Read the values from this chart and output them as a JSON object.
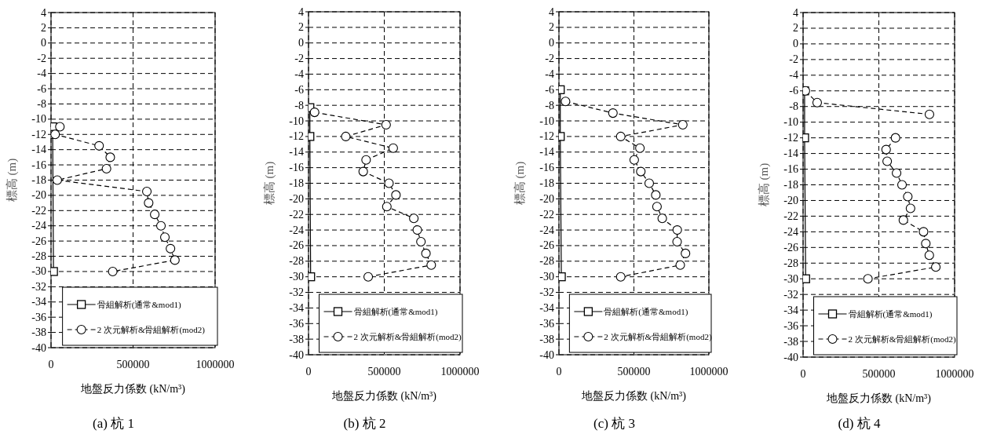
{
  "chart_data": [
    {
      "type": "line",
      "annotations": [
        "(a) 杭 1"
      ],
      "xlabel": "地盤反力係数 (kN/m³)",
      "ylabel": "標高 (m)",
      "xlim": [
        0,
        1000000
      ],
      "xticks": [
        0,
        500000,
        1000000
      ],
      "ylim": [
        -40,
        4
      ],
      "yticks": [
        4,
        2,
        0,
        -2,
        -4,
        -6,
        -8,
        -10,
        -12,
        -14,
        -16,
        -18,
        -20,
        -22,
        -24,
        -26,
        -28,
        -30,
        -32,
        -34,
        -36,
        -38,
        -40
      ],
      "grid": true,
      "legend": "bottom",
      "series": [
        {
          "name": "骨組解析(通常&mod1)",
          "color": "#000000",
          "marker": "square",
          "line_style": "solid",
          "x": [
            10000,
            10000,
            15000
          ],
          "values": [
            -11,
            -12,
            -30
          ]
        },
        {
          "name": "2 次元解析&骨組解析(mod2)",
          "color": "#000000",
          "marker": "circle",
          "line_style": "dashed",
          "x": [
            54000,
            25000,
            293000,
            361000,
            338000,
            38000,
            584000,
            595000,
            632000,
            670000,
            694000,
            728000,
            755000,
            376000
          ],
          "values": [
            -11,
            -12,
            -13.5,
            -15,
            -16.5,
            -18,
            -19.5,
            -21,
            -22.5,
            -24,
            -25.5,
            -27,
            -28.5,
            -30
          ]
        }
      ]
    },
    {
      "type": "line",
      "annotations": [
        "(b) 杭 2"
      ],
      "xlabel": "地盤反力係数 (kN/m³)",
      "ylabel": "標高 (m)",
      "xlim": [
        0,
        1000000
      ],
      "xticks": [
        0,
        500000,
        1000000
      ],
      "ylim": [
        -40,
        4
      ],
      "yticks": [
        4,
        2,
        0,
        -2,
        -4,
        -6,
        -8,
        -10,
        -12,
        -14,
        -16,
        -18,
        -20,
        -22,
        -24,
        -26,
        -28,
        -30,
        -32,
        -34,
        -36,
        -38,
        -40
      ],
      "grid": true,
      "legend": "bottom",
      "series": [
        {
          "name": "骨組解析(通常&mod1)",
          "color": "#000000",
          "marker": "square",
          "line_style": "solid",
          "x": [
            9000,
            9000,
            14000
          ],
          "values": [
            -8.3,
            -12,
            -30
          ]
        },
        {
          "name": "2 次元解析&骨組解析(mod2)",
          "color": "#000000",
          "marker": "circle",
          "line_style": "dashed",
          "x": [
            40000,
            512000,
            246000,
            559000,
            380000,
            361000,
            531000,
            577000,
            517000,
            695000,
            718000,
            742000,
            775000,
            810000,
            394000
          ],
          "values": [
            -8.9,
            -10.5,
            -12,
            -13.5,
            -15,
            -16.5,
            -18,
            -19.5,
            -21,
            -22.5,
            -24,
            -25.5,
            -27,
            -28.5,
            -30
          ]
        }
      ]
    },
    {
      "type": "line",
      "annotations": [
        "(c) 杭 3"
      ],
      "xlabel": "地盤反力係数 (kN/m³)",
      "ylabel": "標高 (m)",
      "xlim": [
        0,
        1000000
      ],
      "xticks": [
        0,
        500000,
        1000000
      ],
      "ylim": [
        -40,
        4
      ],
      "yticks": [
        4,
        2,
        0,
        -2,
        -4,
        -6,
        -8,
        -10,
        -12,
        -14,
        -16,
        -18,
        -20,
        -22,
        -24,
        -26,
        -28,
        -30,
        -32,
        -34,
        -36,
        -38,
        -40
      ],
      "grid": true,
      "legend": "bottom",
      "series": [
        {
          "name": "骨組解析(通常&mod1)",
          "color": "#000000",
          "marker": "square",
          "line_style": "solid",
          "x": [
            9000,
            9000,
            16000
          ],
          "values": [
            -6,
            -12,
            -30
          ]
        },
        {
          "name": "2 次元解析&骨組解析(mod2)",
          "color": "#000000",
          "marker": "circle",
          "line_style": "dashed",
          "x": [
            44000,
            360000,
            826000,
            412000,
            540000,
            502000,
            546000,
            602000,
            646000,
            654000,
            689000,
            789000,
            788000,
            844000,
            809000,
            412000
          ],
          "values": [
            -7.5,
            -9,
            -10.5,
            -12,
            -13.5,
            -15,
            -16.5,
            -18,
            -19.5,
            -21,
            -22.5,
            -24,
            -25.5,
            -27,
            -28.5,
            -30
          ]
        }
      ]
    },
    {
      "type": "line",
      "annotations": [
        "(d) 杭 4"
      ],
      "xlabel": "地盤反力係数 (kN/m³)",
      "ylabel": "標高 (m)",
      "xlim": [
        0,
        1000000
      ],
      "xticks": [
        0,
        500000,
        1000000
      ],
      "ylim": [
        -40,
        4
      ],
      "yticks": [
        4,
        2,
        0,
        -2,
        -4,
        -6,
        -8,
        -10,
        -12,
        -14,
        -16,
        -18,
        -20,
        -22,
        -24,
        -26,
        -28,
        -30,
        -32,
        -34,
        -36,
        -38,
        -40
      ],
      "grid": true,
      "legend": "bottom",
      "series": [
        {
          "name": "骨組解析(通常&mod1)",
          "color": "#000000",
          "marker": "square",
          "line_style": "solid",
          "x": [
            10000,
            10000,
            17000
          ],
          "values": [
            -6,
            -12,
            -30
          ]
        },
        {
          "name": "2 次元解析&骨組解析(mod2)",
          "color": "#000000",
          "marker": "circle",
          "line_style": "dashed",
          "x": [
            15000,
            93000,
            834000,
            null,
            610000,
            548000,
            555000,
            617000,
            653000,
            691000,
            709000,
            662000,
            795000,
            810000,
            833000,
            876000,
            428000
          ],
          "values": [
            -6,
            -7.5,
            -9,
            null,
            -12,
            -13.5,
            -15,
            -16.5,
            -18,
            -19.5,
            -21,
            -22.5,
            -24,
            -25.5,
            -27,
            -28.5,
            -30
          ]
        }
      ]
    }
  ]
}
